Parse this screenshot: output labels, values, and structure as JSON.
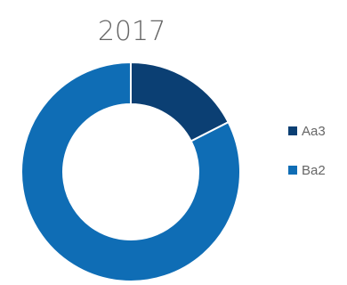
{
  "chart_data": {
    "type": "pie",
    "variant": "donut",
    "title": "2017",
    "categories": [
      "Aa3",
      "Ba2"
    ],
    "values": [
      17.5,
      82.5
    ],
    "colors": [
      "#0b3f73",
      "#0f6db5"
    ],
    "legend_position": "right"
  }
}
